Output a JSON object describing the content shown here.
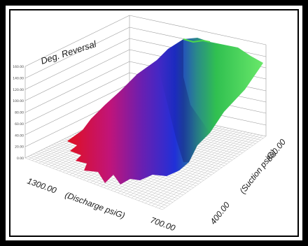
{
  "chart_data": {
    "type": "surface3d",
    "ylabel": "Deg. Reversal",
    "xlabel": "(Discharge psiG)",
    "zlabel": "(Suction psiG)",
    "x_ticks": [
      "1300.00",
      "700.00"
    ],
    "z_ticks": [
      "400.00",
      "800.00"
    ],
    "y_ticks": [
      "160.00",
      "140.00",
      "120.00",
      "100.00",
      "80.00",
      "60.00",
      "40.00",
      "20.00",
      "0.00"
    ],
    "ylim": [
      0,
      160
    ],
    "grid": true,
    "colormap": [
      "#e01020",
      "#7a1aa8",
      "#2a2ad0",
      "#2a9a6a",
      "#3ad43a",
      "#5ae85a"
    ]
  }
}
